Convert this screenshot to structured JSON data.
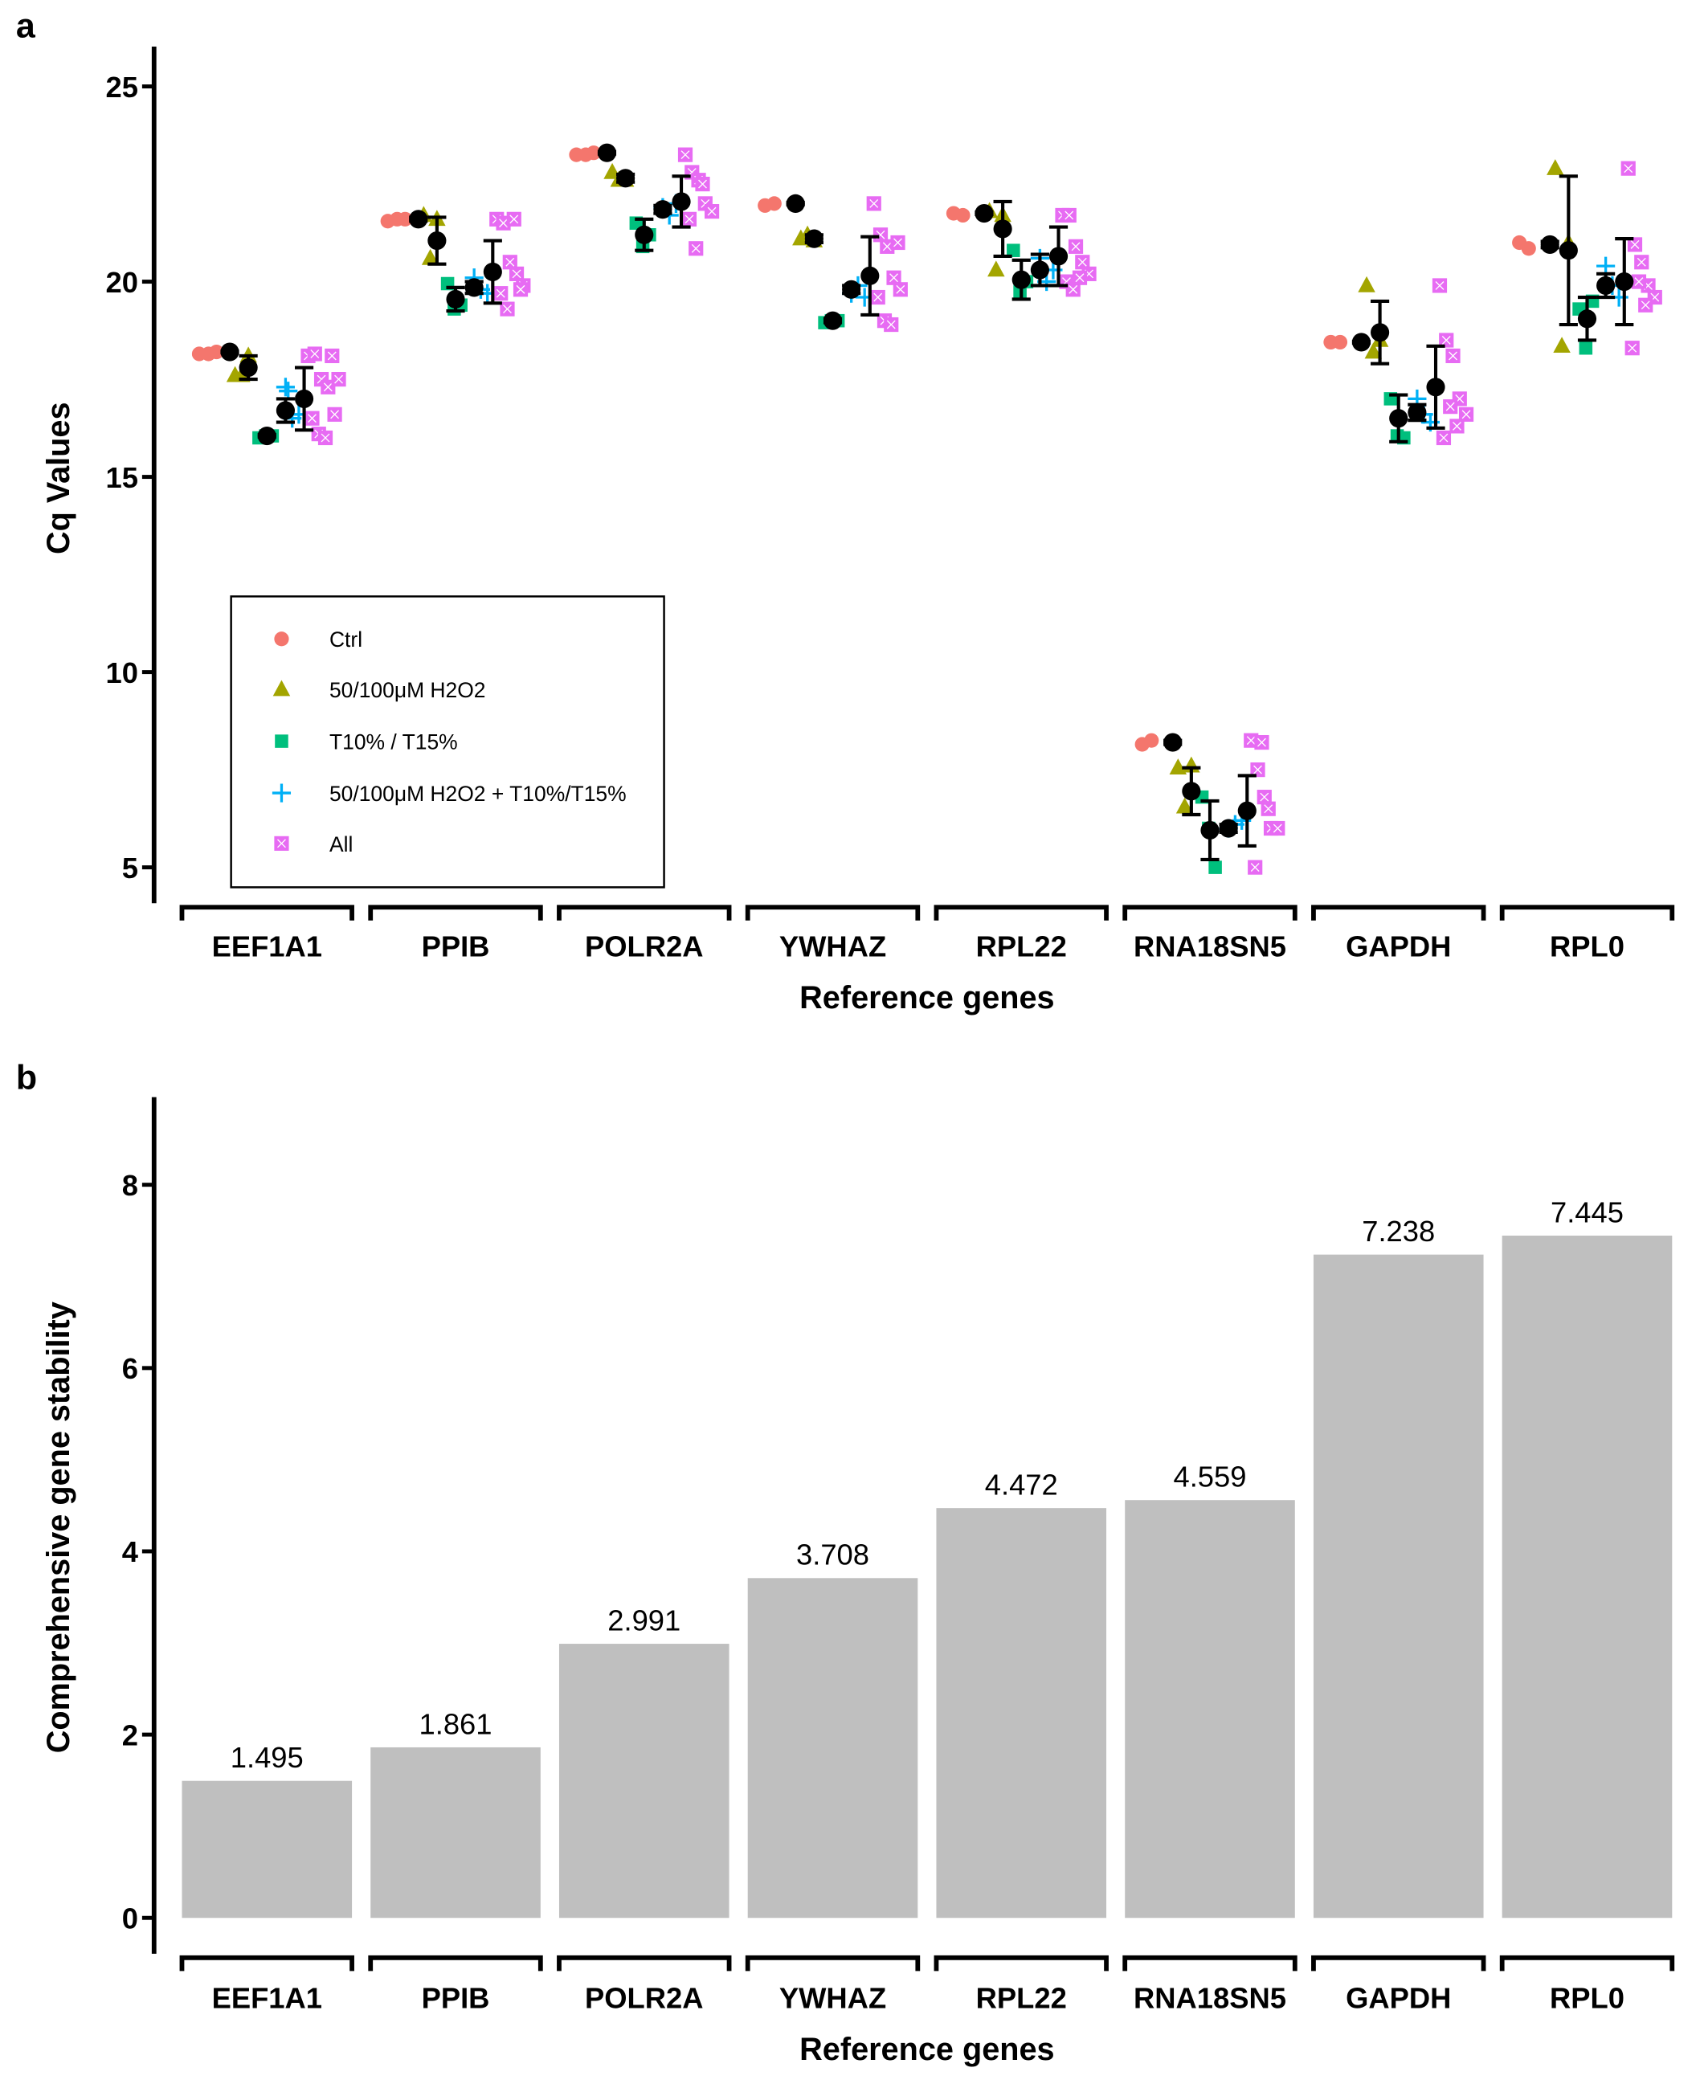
{
  "chart_data": [
    {
      "panel_label": "a",
      "type": "scatter",
      "title": "",
      "xlabel": "Reference genes",
      "ylabel": "Cq Values",
      "ylim": [
        4.2,
        26
      ],
      "yticks": [
        5,
        10,
        15,
        20,
        25
      ],
      "grid": false,
      "legend_position": "bottom-left",
      "categories": [
        "EEF1A1",
        "PPIB",
        "POLR2A",
        "YWHAZ",
        "RPL22",
        "RNA18SN5",
        "GAPDH",
        "RPL0"
      ],
      "series": [
        {
          "name": "Ctrl",
          "marker": "circle",
          "color": "#f4766d"
        },
        {
          "name": "50/100μM H2O2",
          "marker": "triangle",
          "color": "#a3a500"
        },
        {
          "name": "T10% / T15%",
          "marker": "square",
          "color": "#00bf7d"
        },
        {
          "name": "50/100μM H2O2 + T10%/T15%",
          "marker": "plus",
          "color": "#00b0f6"
        },
        {
          "name": "All",
          "marker": "boxed-x",
          "color": "#e76bf3"
        }
      ],
      "means": [
        [
          18.2,
          17.8,
          16.05,
          16.7,
          17.0
        ],
        [
          21.6,
          21.05,
          19.55,
          19.85,
          20.25
        ],
        [
          23.3,
          22.65,
          21.2,
          21.85,
          22.05
        ],
        [
          22.0,
          21.1,
          19.0,
          19.8,
          20.15
        ],
        [
          21.75,
          21.35,
          20.05,
          20.3,
          20.65
        ],
        [
          8.2,
          6.95,
          5.95,
          6.0,
          6.45
        ],
        [
          18.45,
          18.7,
          16.5,
          16.65,
          17.3
        ],
        [
          20.95,
          20.8,
          19.05,
          19.9,
          20.0
        ]
      ],
      "sd": [
        [
          0.02,
          0.3,
          0.03,
          0.3,
          0.8
        ],
        [
          0.05,
          0.6,
          0.3,
          0.15,
          0.8
        ],
        [
          0.03,
          0.1,
          0.4,
          0.1,
          0.65
        ],
        [
          0.03,
          0.1,
          0.05,
          0.1,
          1.0
        ],
        [
          0.03,
          0.7,
          0.5,
          0.4,
          0.75
        ],
        [
          0.05,
          0.6,
          0.75,
          0.1,
          0.9
        ],
        [
          0.02,
          0.8,
          0.6,
          0.2,
          1.05
        ],
        [
          0.08,
          1.9,
          0.55,
          0.3,
          1.1
        ]
      ],
      "points": [
        [
          [
            18.15,
            18.15,
            18.2
          ],
          [
            17.6,
            17.6,
            18.1
          ],
          [
            16.0,
            16.05,
            16.05
          ],
          [
            17.3,
            16.5,
            16.6,
            17.2
          ],
          [
            18.1,
            18.15,
            17.5,
            17.3,
            16.6,
            16.5,
            16.1,
            16.0,
            18.1,
            17.5
          ]
        ],
        [
          [
            21.55,
            21.6,
            21.6
          ],
          [
            21.7,
            20.6,
            21.6
          ],
          [
            19.95,
            19.3,
            19.4
          ],
          [
            20.1,
            19.8,
            19.7
          ],
          [
            21.6,
            21.5,
            20.5,
            20.2,
            19.9,
            19.7,
            19.3,
            21.6,
            19.8
          ]
        ],
        [
          [
            23.25,
            23.25,
            23.3
          ],
          [
            22.8,
            22.6,
            22.6
          ],
          [
            21.5,
            20.9,
            21.2
          ],
          [
            21.9,
            21.7,
            22.0
          ],
          [
            23.25,
            22.8,
            22.6,
            22.0,
            21.8,
            21.6,
            20.85,
            22.5
          ]
        ],
        [
          [
            21.95,
            22.0
          ],
          [
            21.1,
            21.2,
            21.05
          ],
          [
            18.95,
            19.0,
            19.0
          ],
          [
            19.7,
            19.9,
            19.6
          ],
          [
            22.0,
            21.2,
            20.9,
            20.1,
            19.8,
            19.6,
            19.0,
            18.9,
            21.0
          ]
        ],
        [
          [
            21.75,
            21.7
          ],
          [
            21.8,
            20.3,
            21.7
          ],
          [
            20.8,
            19.75,
            20.0
          ],
          [
            20.6,
            20.0,
            20.3
          ],
          [
            21.7,
            21.7,
            20.9,
            20.5,
            20.2,
            20.0,
            19.8,
            20.1
          ]
        ],
        [
          [
            8.15,
            8.25
          ],
          [
            7.55,
            6.55,
            7.6
          ],
          [
            6.8,
            6.0,
            5.0
          ],
          [
            6.0,
            6.1,
            6.2
          ],
          [
            8.25,
            7.5,
            6.8,
            6.0,
            6.0,
            5.0,
            8.2,
            6.5
          ]
        ],
        [
          [
            18.45,
            18.45
          ],
          [
            19.9,
            18.2,
            18.5
          ],
          [
            17.0,
            16.05,
            16.0
          ],
          [
            17.0,
            16.6,
            16.4
          ],
          [
            19.9,
            18.5,
            18.1,
            17.0,
            16.6,
            16.0,
            16.8,
            16.3
          ]
        ],
        [
          [
            21.0,
            20.85
          ],
          [
            22.9,
            18.35,
            21.0
          ],
          [
            19.3,
            18.3,
            19.5
          ],
          [
            20.4,
            19.9,
            19.6
          ],
          [
            22.9,
            20.95,
            20.5,
            19.9,
            19.6,
            18.3,
            20.0,
            19.4
          ]
        ]
      ]
    },
    {
      "panel_label": "b",
      "type": "bar",
      "title": "",
      "xlabel": "Reference genes",
      "ylabel": "Comprehensive gene stability",
      "ylim": [
        0,
        8.95
      ],
      "yticks": [
        0,
        2,
        4,
        6,
        8
      ],
      "grid": false,
      "bar_color": "#bfbfbf",
      "categories": [
        "EEF1A1",
        "PPIB",
        "POLR2A",
        "YWHAZ",
        "RPL22",
        "RNA18SN5",
        "GAPDH",
        "RPL0"
      ],
      "values": [
        1.495,
        1.861,
        2.991,
        3.708,
        4.472,
        4.559,
        7.238,
        7.445
      ],
      "data_labels": [
        "1.495",
        "1.861",
        "2.991",
        "3.708",
        "4.472",
        "4.559",
        "7.238",
        "7.445"
      ]
    }
  ]
}
